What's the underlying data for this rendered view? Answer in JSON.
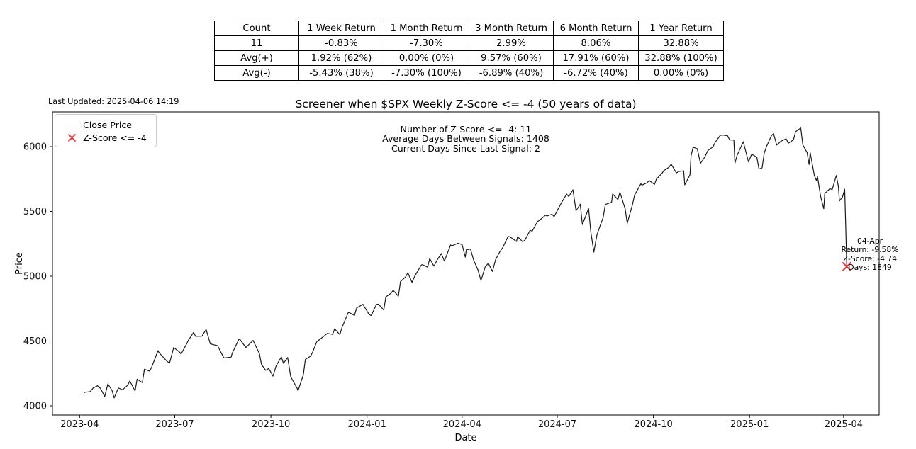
{
  "page": {
    "last_updated": "Last Updated: 2025-04-06 14:19"
  },
  "table": {
    "headers": [
      "Count",
      "1 Week Return",
      "1 Month Return",
      "3 Month Return",
      "6 Month Return",
      "1 Year Return"
    ],
    "rows": [
      [
        "11",
        "-0.83%",
        "-7.30%",
        "2.99%",
        "8.06%",
        "32.88%"
      ],
      [
        "Avg(+)",
        "1.92% (62%)",
        "0.00% (0%)",
        "9.57% (60%)",
        "17.91% (60%)",
        "32.88% (100%)"
      ],
      [
        "Avg(-)",
        "-5.43% (38%)",
        "-7.30% (100%)",
        "-6.89% (40%)",
        "-6.72% (40%)",
        "0.00% (0%)"
      ]
    ]
  },
  "chart_data": {
    "type": "line",
    "title": "Screener when $SPX Weekly Z-Score <= -4 (50 years of data)",
    "xlabel": "Date",
    "ylabel": "Price",
    "grid": false,
    "legend_position": "upper-left",
    "legend": [
      {
        "label": "Close Price",
        "type": "line"
      },
      {
        "label": "Z-Score <= -4",
        "type": "x-marker"
      }
    ],
    "colors": {
      "line": "#1a1a1a",
      "marker": "#f03131"
    },
    "stats_annotation": {
      "lines": [
        "Number of Z-Score <= -4: 11",
        "Average Days Between Signals: 1408",
        "Current Days Since Last Signal: 2"
      ]
    },
    "signal_annotation": {
      "lines": [
        "04-Apr",
        "Return: -9.58%",
        "Z-Score: -4.74",
        "Days: 1849"
      ]
    },
    "xticks": [
      "2023-04",
      "2023-07",
      "2023-10",
      "2024-01",
      "2024-04",
      "2024-07",
      "2024-10",
      "2025-01",
      "2025-04"
    ],
    "yticks": [
      4000,
      4500,
      5000,
      5500,
      6000
    ],
    "xlim": [
      "2023-03-06",
      "2025-05-05"
    ],
    "ylim": [
      3929,
      6268
    ],
    "signals": [
      {
        "date": "2025-04-04",
        "price": 5074
      }
    ],
    "series": [
      {
        "name": "Close Price",
        "points": [
          [
            "2023-04-05",
            4100
          ],
          [
            "2023-04-06",
            4105
          ],
          [
            "2023-04-11",
            4109
          ],
          [
            "2023-04-14",
            4138
          ],
          [
            "2023-04-18",
            4155
          ],
          [
            "2023-04-21",
            4134
          ],
          [
            "2023-04-25",
            4072
          ],
          [
            "2023-04-28",
            4169
          ],
          [
            "2023-05-02",
            4119
          ],
          [
            "2023-05-04",
            4061
          ],
          [
            "2023-05-08",
            4138
          ],
          [
            "2023-05-12",
            4124
          ],
          [
            "2023-05-17",
            4159
          ],
          [
            "2023-05-19",
            4192
          ],
          [
            "2023-05-24",
            4115
          ],
          [
            "2023-05-26",
            4205
          ],
          [
            "2023-05-31",
            4180
          ],
          [
            "2023-06-02",
            4282
          ],
          [
            "2023-06-07",
            4268
          ],
          [
            "2023-06-09",
            4299
          ],
          [
            "2023-06-15",
            4426
          ],
          [
            "2023-06-16",
            4410
          ],
          [
            "2023-06-23",
            4348
          ],
          [
            "2023-06-26",
            4329
          ],
          [
            "2023-06-30",
            4450
          ],
          [
            "2023-07-06",
            4412
          ],
          [
            "2023-07-07",
            4399
          ],
          [
            "2023-07-12",
            4472
          ],
          [
            "2023-07-14",
            4505
          ],
          [
            "2023-07-19",
            4566
          ],
          [
            "2023-07-21",
            4536
          ],
          [
            "2023-07-27",
            4537
          ],
          [
            "2023-07-31",
            4589
          ],
          [
            "2023-08-04",
            4478
          ],
          [
            "2023-08-09",
            4468
          ],
          [
            "2023-08-11",
            4464
          ],
          [
            "2023-08-17",
            4370
          ],
          [
            "2023-08-18",
            4370
          ],
          [
            "2023-08-24",
            4376
          ],
          [
            "2023-08-25",
            4406
          ],
          [
            "2023-08-31",
            4508
          ],
          [
            "2023-09-01",
            4516
          ],
          [
            "2023-09-07",
            4451
          ],
          [
            "2023-09-08",
            4457
          ],
          [
            "2023-09-14",
            4505
          ],
          [
            "2023-09-20",
            4402
          ],
          [
            "2023-09-22",
            4320
          ],
          [
            "2023-09-26",
            4274
          ],
          [
            "2023-09-29",
            4288
          ],
          [
            "2023-10-03",
            4229
          ],
          [
            "2023-10-06",
            4309
          ],
          [
            "2023-10-11",
            4377
          ],
          [
            "2023-10-13",
            4328
          ],
          [
            "2023-10-17",
            4373
          ],
          [
            "2023-10-20",
            4224
          ],
          [
            "2023-10-26",
            4137
          ],
          [
            "2023-10-27",
            4117
          ],
          [
            "2023-11-01",
            4238
          ],
          [
            "2023-11-03",
            4358
          ],
          [
            "2023-11-08",
            4383
          ],
          [
            "2023-11-10",
            4415
          ],
          [
            "2023-11-14",
            4496
          ],
          [
            "2023-11-17",
            4514
          ],
          [
            "2023-11-24",
            4559
          ],
          [
            "2023-11-29",
            4551
          ],
          [
            "2023-12-01",
            4594
          ],
          [
            "2023-12-06",
            4549
          ],
          [
            "2023-12-08",
            4604
          ],
          [
            "2023-12-14",
            4720
          ],
          [
            "2023-12-15",
            4719
          ],
          [
            "2023-12-20",
            4698
          ],
          [
            "2023-12-22",
            4755
          ],
          [
            "2023-12-28",
            4783
          ],
          [
            "2023-12-29",
            4770
          ],
          [
            "2024-01-03",
            4705
          ],
          [
            "2024-01-05",
            4697
          ],
          [
            "2024-01-10",
            4783
          ],
          [
            "2024-01-12",
            4784
          ],
          [
            "2024-01-17",
            4739
          ],
          [
            "2024-01-19",
            4840
          ],
          [
            "2024-01-24",
            4869
          ],
          [
            "2024-01-26",
            4891
          ],
          [
            "2024-01-31",
            4846
          ],
          [
            "2024-02-02",
            4959
          ],
          [
            "2024-02-07",
            4995
          ],
          [
            "2024-02-09",
            5027
          ],
          [
            "2024-02-13",
            4953
          ],
          [
            "2024-02-16",
            5006
          ],
          [
            "2024-02-22",
            5087
          ],
          [
            "2024-02-23",
            5089
          ],
          [
            "2024-02-28",
            5070
          ],
          [
            "2024-03-01",
            5137
          ],
          [
            "2024-03-05",
            5078
          ],
          [
            "2024-03-08",
            5124
          ],
          [
            "2024-03-12",
            5175
          ],
          [
            "2024-03-15",
            5117
          ],
          [
            "2024-03-21",
            5241
          ],
          [
            "2024-03-22",
            5234
          ],
          [
            "2024-03-28",
            5254
          ],
          [
            "2024-04-01",
            5244
          ],
          [
            "2024-04-04",
            5147
          ],
          [
            "2024-04-05",
            5204
          ],
          [
            "2024-04-09",
            5210
          ],
          [
            "2024-04-12",
            5123
          ],
          [
            "2024-04-16",
            5051
          ],
          [
            "2024-04-19",
            4967
          ],
          [
            "2024-04-23",
            5071
          ],
          [
            "2024-04-26",
            5100
          ],
          [
            "2024-04-30",
            5036
          ],
          [
            "2024-05-03",
            5128
          ],
          [
            "2024-05-07",
            5188
          ],
          [
            "2024-05-10",
            5223
          ],
          [
            "2024-05-15",
            5308
          ],
          [
            "2024-05-17",
            5303
          ],
          [
            "2024-05-23",
            5268
          ],
          [
            "2024-05-24",
            5305
          ],
          [
            "2024-05-29",
            5266
          ],
          [
            "2024-05-31",
            5278
          ],
          [
            "2024-06-05",
            5354
          ],
          [
            "2024-06-07",
            5347
          ],
          [
            "2024-06-12",
            5421
          ],
          [
            "2024-06-14",
            5432
          ],
          [
            "2024-06-20",
            5473
          ],
          [
            "2024-06-21",
            5465
          ],
          [
            "2024-06-26",
            5478
          ],
          [
            "2024-06-28",
            5460
          ],
          [
            "2024-07-03",
            5537
          ],
          [
            "2024-07-05",
            5567
          ],
          [
            "2024-07-10",
            5634
          ],
          [
            "2024-07-12",
            5615
          ],
          [
            "2024-07-16",
            5667
          ],
          [
            "2024-07-19",
            5505
          ],
          [
            "2024-07-23",
            5556
          ],
          [
            "2024-07-25",
            5399
          ],
          [
            "2024-07-31",
            5522
          ],
          [
            "2024-08-02",
            5347
          ],
          [
            "2024-08-05",
            5186
          ],
          [
            "2024-08-08",
            5319
          ],
          [
            "2024-08-09",
            5344
          ],
          [
            "2024-08-14",
            5455
          ],
          [
            "2024-08-16",
            5554
          ],
          [
            "2024-08-22",
            5570
          ],
          [
            "2024-08-23",
            5635
          ],
          [
            "2024-08-28",
            5592
          ],
          [
            "2024-08-30",
            5648
          ],
          [
            "2024-09-04",
            5520
          ],
          [
            "2024-09-06",
            5408
          ],
          [
            "2024-09-11",
            5554
          ],
          [
            "2024-09-13",
            5626
          ],
          [
            "2024-09-19",
            5714
          ],
          [
            "2024-09-20",
            5703
          ],
          [
            "2024-09-25",
            5722
          ],
          [
            "2024-09-27",
            5738
          ],
          [
            "2024-10-02",
            5709
          ],
          [
            "2024-10-04",
            5751
          ],
          [
            "2024-10-09",
            5792
          ],
          [
            "2024-10-11",
            5815
          ],
          [
            "2024-10-16",
            5842
          ],
          [
            "2024-10-18",
            5865
          ],
          [
            "2024-10-23",
            5797
          ],
          [
            "2024-10-25",
            5808
          ],
          [
            "2024-10-30",
            5814
          ],
          [
            "2024-10-31",
            5705
          ],
          [
            "2024-11-05",
            5783
          ],
          [
            "2024-11-06",
            5929
          ],
          [
            "2024-11-08",
            5996
          ],
          [
            "2024-11-12",
            5984
          ],
          [
            "2024-11-15",
            5871
          ],
          [
            "2024-11-19",
            5917
          ],
          [
            "2024-11-22",
            5969
          ],
          [
            "2024-11-27",
            5998
          ],
          [
            "2024-11-29",
            6032
          ],
          [
            "2024-12-04",
            6087
          ],
          [
            "2024-12-06",
            6090
          ],
          [
            "2024-12-11",
            6084
          ],
          [
            "2024-12-13",
            6051
          ],
          [
            "2024-12-17",
            6051
          ],
          [
            "2024-12-18",
            5872
          ],
          [
            "2024-12-20",
            5931
          ],
          [
            "2024-12-26",
            6038
          ],
          [
            "2024-12-31",
            5882
          ],
          [
            "2025-01-03",
            5942
          ],
          [
            "2025-01-08",
            5918
          ],
          [
            "2025-01-10",
            5827
          ],
          [
            "2025-01-13",
            5836
          ],
          [
            "2025-01-15",
            5950
          ],
          [
            "2025-01-17",
            5997
          ],
          [
            "2025-01-22",
            6086
          ],
          [
            "2025-01-24",
            6101
          ],
          [
            "2025-01-27",
            6012
          ],
          [
            "2025-01-31",
            6041
          ],
          [
            "2025-02-05",
            6061
          ],
          [
            "2025-02-07",
            6026
          ],
          [
            "2025-02-12",
            6052
          ],
          [
            "2025-02-14",
            6115
          ],
          [
            "2025-02-19",
            6144
          ],
          [
            "2025-02-21",
            6013
          ],
          [
            "2025-02-25",
            5955
          ],
          [
            "2025-02-27",
            5862
          ],
          [
            "2025-02-28",
            5955
          ],
          [
            "2025-03-04",
            5778
          ],
          [
            "2025-03-06",
            5738
          ],
          [
            "2025-03-07",
            5770
          ],
          [
            "2025-03-10",
            5615
          ],
          [
            "2025-03-13",
            5521
          ],
          [
            "2025-03-14",
            5639
          ],
          [
            "2025-03-19",
            5676
          ],
          [
            "2025-03-21",
            5668
          ],
          [
            "2025-03-25",
            5777
          ],
          [
            "2025-03-27",
            5693
          ],
          [
            "2025-03-28",
            5581
          ],
          [
            "2025-03-31",
            5612
          ],
          [
            "2025-04-02",
            5671
          ],
          [
            "2025-04-03",
            5396
          ],
          [
            "2025-04-04",
            5074
          ]
        ]
      }
    ]
  }
}
